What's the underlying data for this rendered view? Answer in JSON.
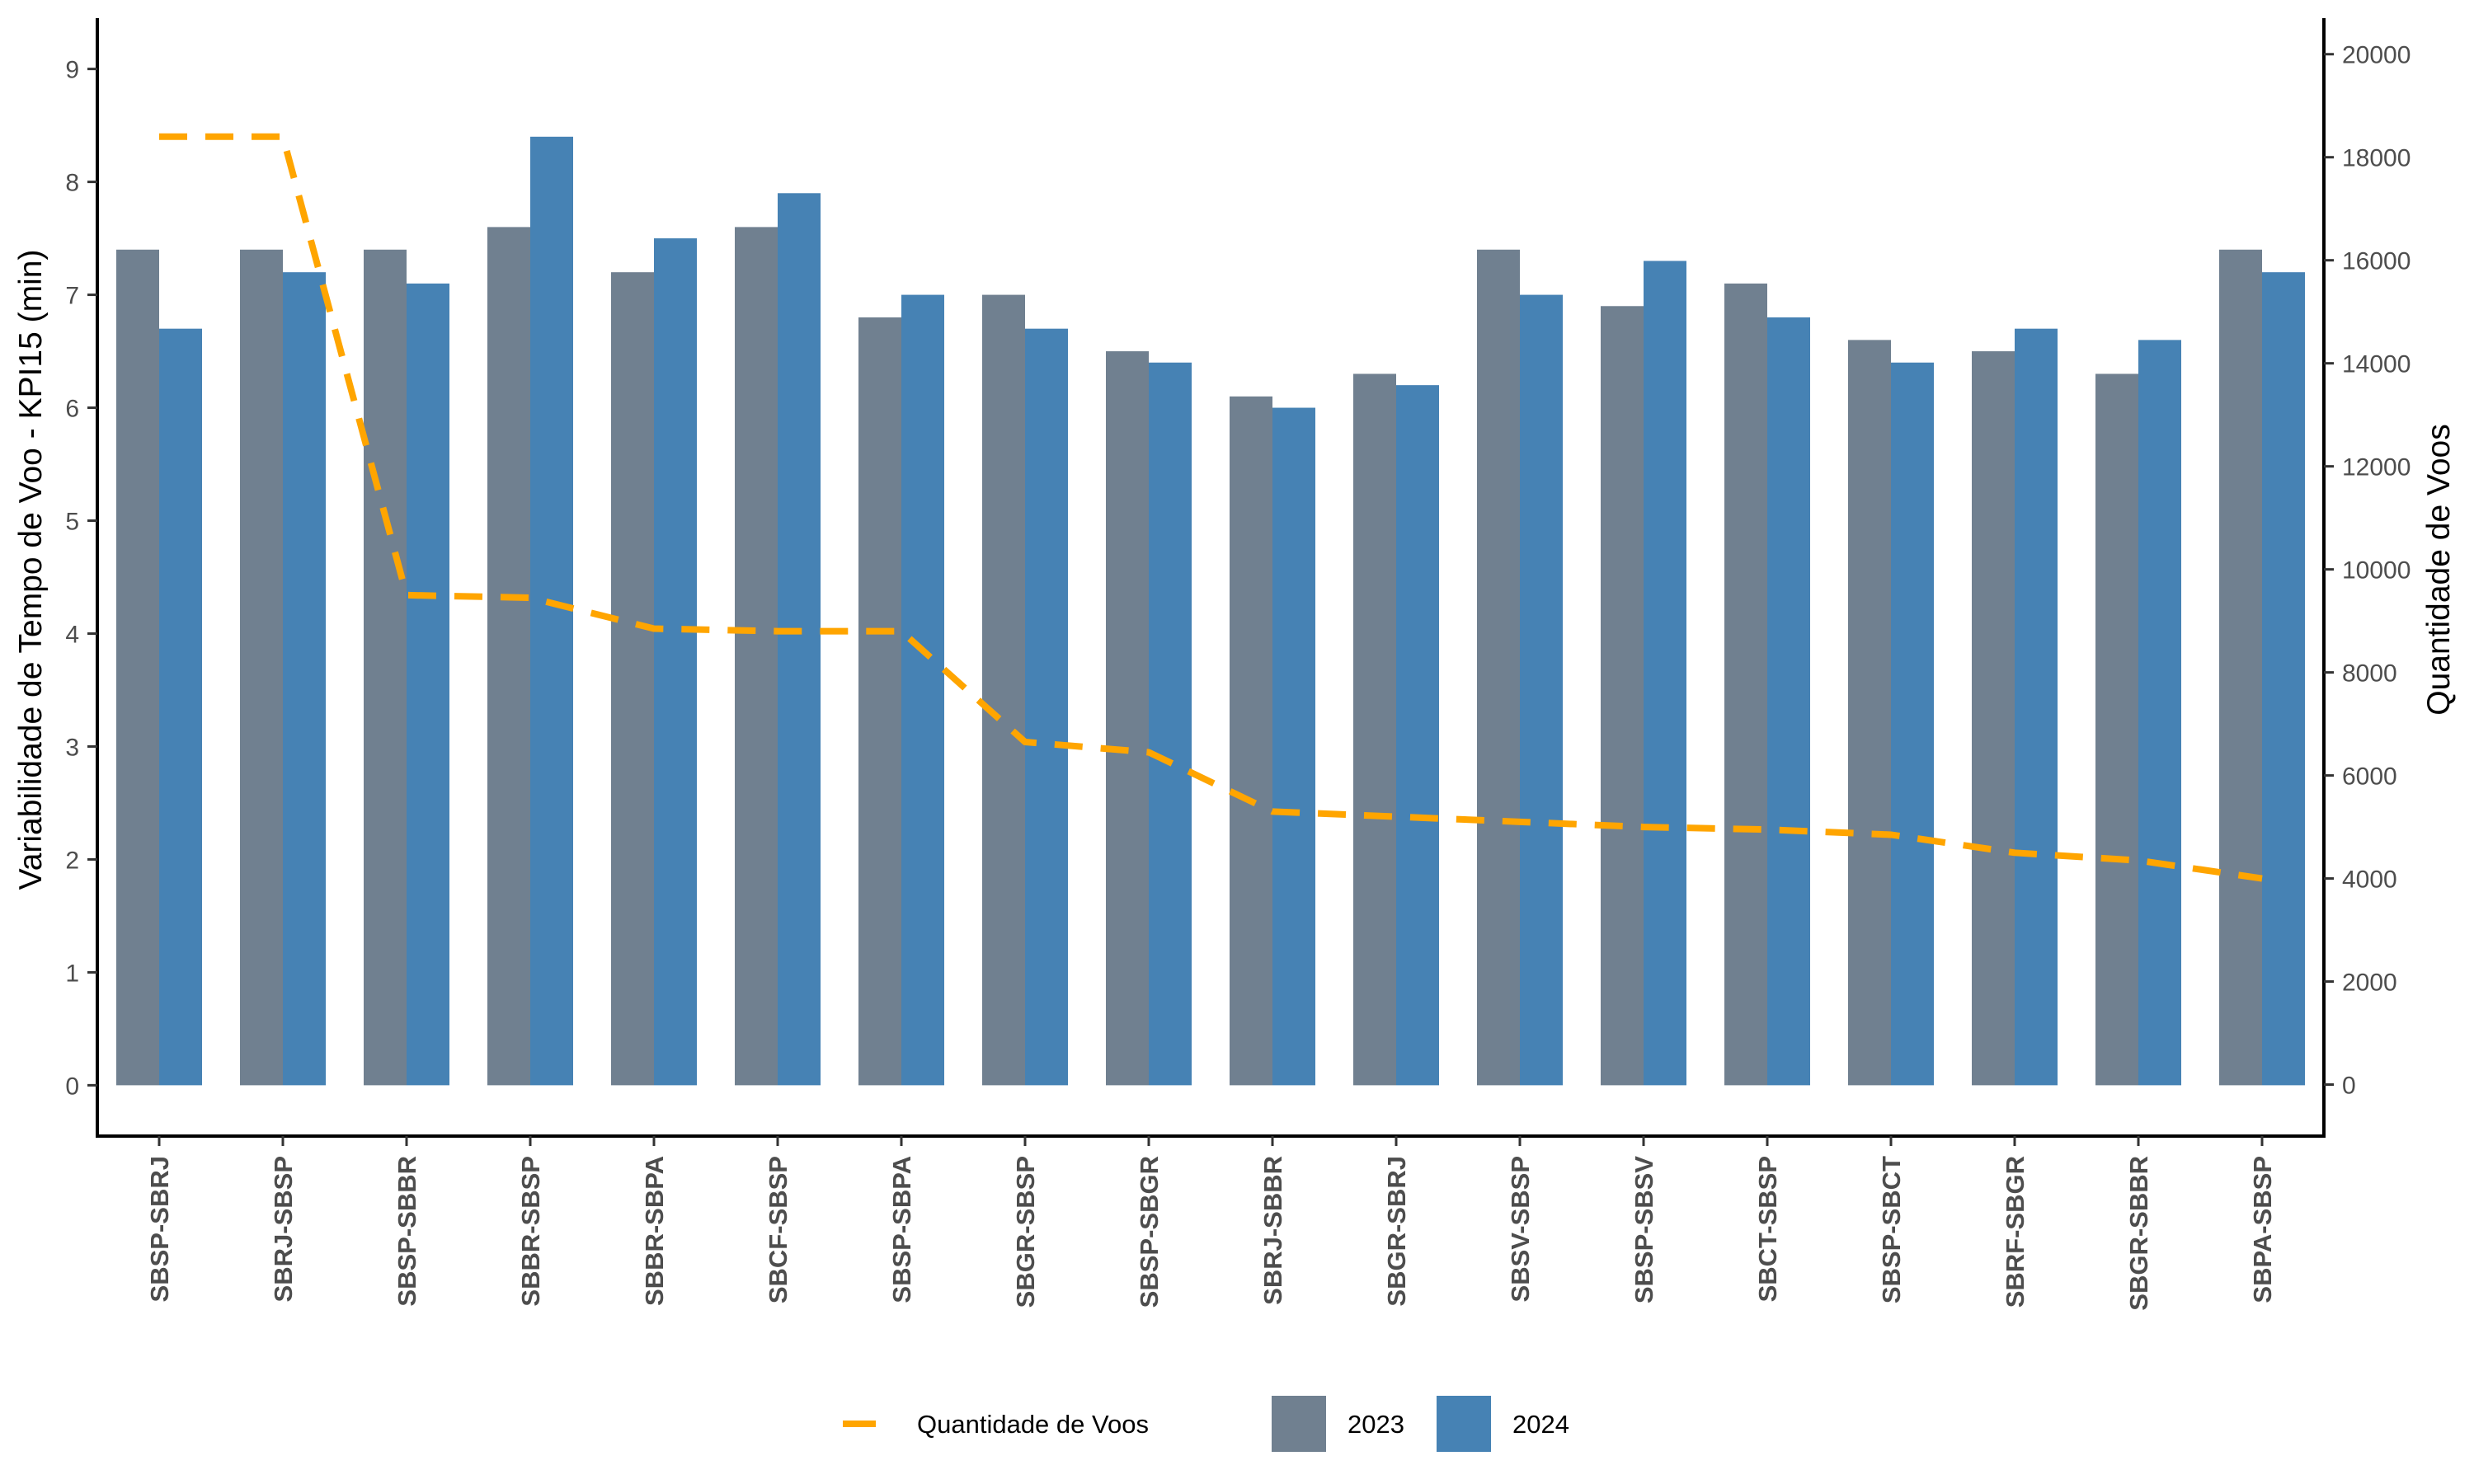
{
  "chart_data": {
    "type": "bar",
    "categories": [
      "SBSP-SBRJ",
      "SBRJ-SBSP",
      "SBSP-SBBR",
      "SBBR-SBSP",
      "SBBR-SBPA",
      "SBCF-SBSP",
      "SBSP-SBPA",
      "SBGR-SBSP",
      "SBSP-SBGR",
      "SBRJ-SBBR",
      "SBGR-SBRJ",
      "SBSV-SBSP",
      "SBSP-SBSV",
      "SBCT-SBSP",
      "SBSP-SBCT",
      "SBRF-SBGR",
      "SBGR-SBBR",
      "SBPA-SBSP"
    ],
    "series": [
      {
        "name": "2023",
        "color": "#708090",
        "values": [
          7.4,
          7.4,
          7.4,
          7.6,
          7.2,
          7.6,
          6.8,
          7.0,
          6.5,
          6.1,
          6.3,
          7.4,
          6.9,
          7.1,
          6.6,
          6.5,
          6.3,
          7.4
        ]
      },
      {
        "name": "2024",
        "color": "#4682B4",
        "values": [
          6.7,
          7.2,
          7.1,
          8.4,
          7.5,
          7.9,
          7.0,
          6.7,
          6.4,
          6.0,
          6.2,
          7.0,
          7.3,
          6.8,
          6.4,
          6.7,
          6.6,
          7.2
        ]
      }
    ],
    "line_series": {
      "name": "Quantidade de Voos",
      "color": "#FFA500",
      "style": "dashed",
      "axis": "right",
      "values": [
        18400,
        18400,
        9500,
        9450,
        8850,
        8800,
        8800,
        6650,
        6450,
        5300,
        5200,
        5100,
        5000,
        4950,
        4850,
        4500,
        4350,
        4000
      ]
    },
    "ylabel": "Variabilidade de Tempo de Voo - KPI15 (min)",
    "ylabel_right": "Quantidade de Voos",
    "ylim": [
      -0.45,
      9.45
    ],
    "yticks": [
      0,
      1,
      2,
      3,
      4,
      5,
      6,
      7,
      8,
      9
    ],
    "ylim_right": [
      -1000,
      20700
    ],
    "yticks_right": [
      0,
      2000,
      4000,
      6000,
      8000,
      10000,
      12000,
      14000,
      16000,
      18000,
      20000
    ],
    "legend_position": "bottom",
    "legend": [
      {
        "label": "Quantidade de Voos",
        "kind": "line",
        "color": "#FFA500"
      },
      {
        "label": "2023",
        "kind": "box",
        "color": "#708090"
      },
      {
        "label": "2024",
        "kind": "box",
        "color": "#4682B4"
      }
    ],
    "grid": false
  }
}
